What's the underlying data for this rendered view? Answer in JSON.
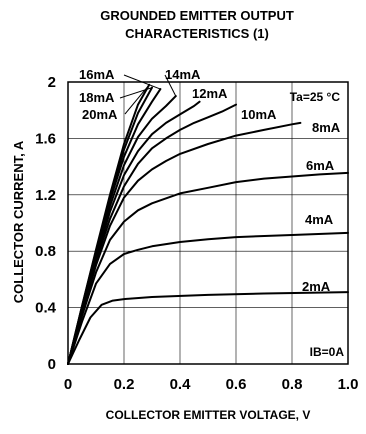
{
  "chart_data": {
    "type": "line",
    "title": "GROUNDED EMITTER OUTPUT",
    "subtitle": "CHARACTERISTICS (1)",
    "xlabel": "COLLECTOR EMITTER VOLTAGE, V",
    "ylabel": "COLLECTOR CURRENT, A",
    "xlim": [
      0,
      1.0
    ],
    "ylim": [
      0,
      2.0
    ],
    "x_ticks": [
      "0",
      "0.2",
      "0.4",
      "0.6",
      "0.8",
      "1.0"
    ],
    "x_tick_values": [
      0,
      0.2,
      0.4,
      0.6,
      0.8,
      1.0
    ],
    "y_ticks": [
      "0",
      "0.4",
      "0.8",
      "1.2",
      "1.6",
      "2"
    ],
    "y_tick_values": [
      0,
      0.4,
      0.8,
      1.2,
      1.6,
      2.0
    ],
    "grid": true,
    "line_color": "#000000",
    "condition_label": "Ta=25 °C",
    "zero_label": "IB=0A",
    "series": [
      {
        "name": "2mA",
        "x": [
          0,
          0.04,
          0.08,
          0.12,
          0.16,
          0.2,
          0.3,
          0.5,
          0.7,
          1.0
        ],
        "values": [
          0,
          0.17,
          0.33,
          0.42,
          0.45,
          0.46,
          0.475,
          0.49,
          0.5,
          0.51
        ]
      },
      {
        "name": "4mA",
        "x": [
          0,
          0.05,
          0.1,
          0.15,
          0.2,
          0.25,
          0.3,
          0.4,
          0.5,
          0.6,
          0.8,
          1.0
        ],
        "values": [
          0,
          0.3,
          0.57,
          0.71,
          0.78,
          0.81,
          0.835,
          0.865,
          0.885,
          0.9,
          0.915,
          0.93
        ]
      },
      {
        "name": "6mA",
        "x": [
          0,
          0.05,
          0.1,
          0.15,
          0.2,
          0.25,
          0.3,
          0.4,
          0.5,
          0.6,
          0.7,
          0.8,
          0.9,
          1.0
        ],
        "values": [
          0,
          0.34,
          0.65,
          0.88,
          1.01,
          1.09,
          1.14,
          1.21,
          1.25,
          1.29,
          1.315,
          1.33,
          1.345,
          1.355
        ]
      },
      {
        "name": "8mA",
        "x": [
          0,
          0.05,
          0.1,
          0.15,
          0.2,
          0.25,
          0.3,
          0.35,
          0.4,
          0.5,
          0.6,
          0.7,
          0.8,
          0.83
        ],
        "values": [
          0,
          0.36,
          0.7,
          0.98,
          1.18,
          1.3,
          1.38,
          1.44,
          1.49,
          1.56,
          1.62,
          1.66,
          1.7,
          1.71
        ]
      },
      {
        "name": "10mA",
        "x": [
          0,
          0.05,
          0.1,
          0.15,
          0.2,
          0.25,
          0.3,
          0.35,
          0.4,
          0.45,
          0.5,
          0.55,
          0.6
        ],
        "values": [
          0,
          0.37,
          0.73,
          1.03,
          1.26,
          1.42,
          1.53,
          1.6,
          1.66,
          1.71,
          1.75,
          1.79,
          1.84
        ]
      },
      {
        "name": "12mA",
        "x": [
          0,
          0.05,
          0.1,
          0.15,
          0.2,
          0.25,
          0.3,
          0.35,
          0.4,
          0.45,
          0.47
        ],
        "values": [
          0,
          0.38,
          0.75,
          1.08,
          1.34,
          1.51,
          1.63,
          1.71,
          1.77,
          1.83,
          1.86
        ]
      },
      {
        "name": "14mA",
        "x": [
          0,
          0.05,
          0.1,
          0.15,
          0.2,
          0.25,
          0.3,
          0.35,
          0.385
        ],
        "values": [
          0,
          0.39,
          0.77,
          1.12,
          1.41,
          1.61,
          1.74,
          1.83,
          1.9
        ]
      },
      {
        "name": "16mA",
        "x": [
          0,
          0.05,
          0.1,
          0.15,
          0.2,
          0.25,
          0.3,
          0.33
        ],
        "values": [
          0,
          0.4,
          0.79,
          1.16,
          1.47,
          1.7,
          1.86,
          1.95
        ]
      },
      {
        "name": "18mA",
        "x": [
          0,
          0.05,
          0.1,
          0.15,
          0.2,
          0.25,
          0.3
        ],
        "values": [
          0,
          0.41,
          0.8,
          1.18,
          1.52,
          1.78,
          1.96
        ]
      },
      {
        "name": "20mA",
        "x": [
          0,
          0.05,
          0.1,
          0.15,
          0.2,
          0.25,
          0.29
        ],
        "values": [
          0,
          0.41,
          0.81,
          1.2,
          1.56,
          1.84,
          1.98
        ]
      }
    ]
  }
}
